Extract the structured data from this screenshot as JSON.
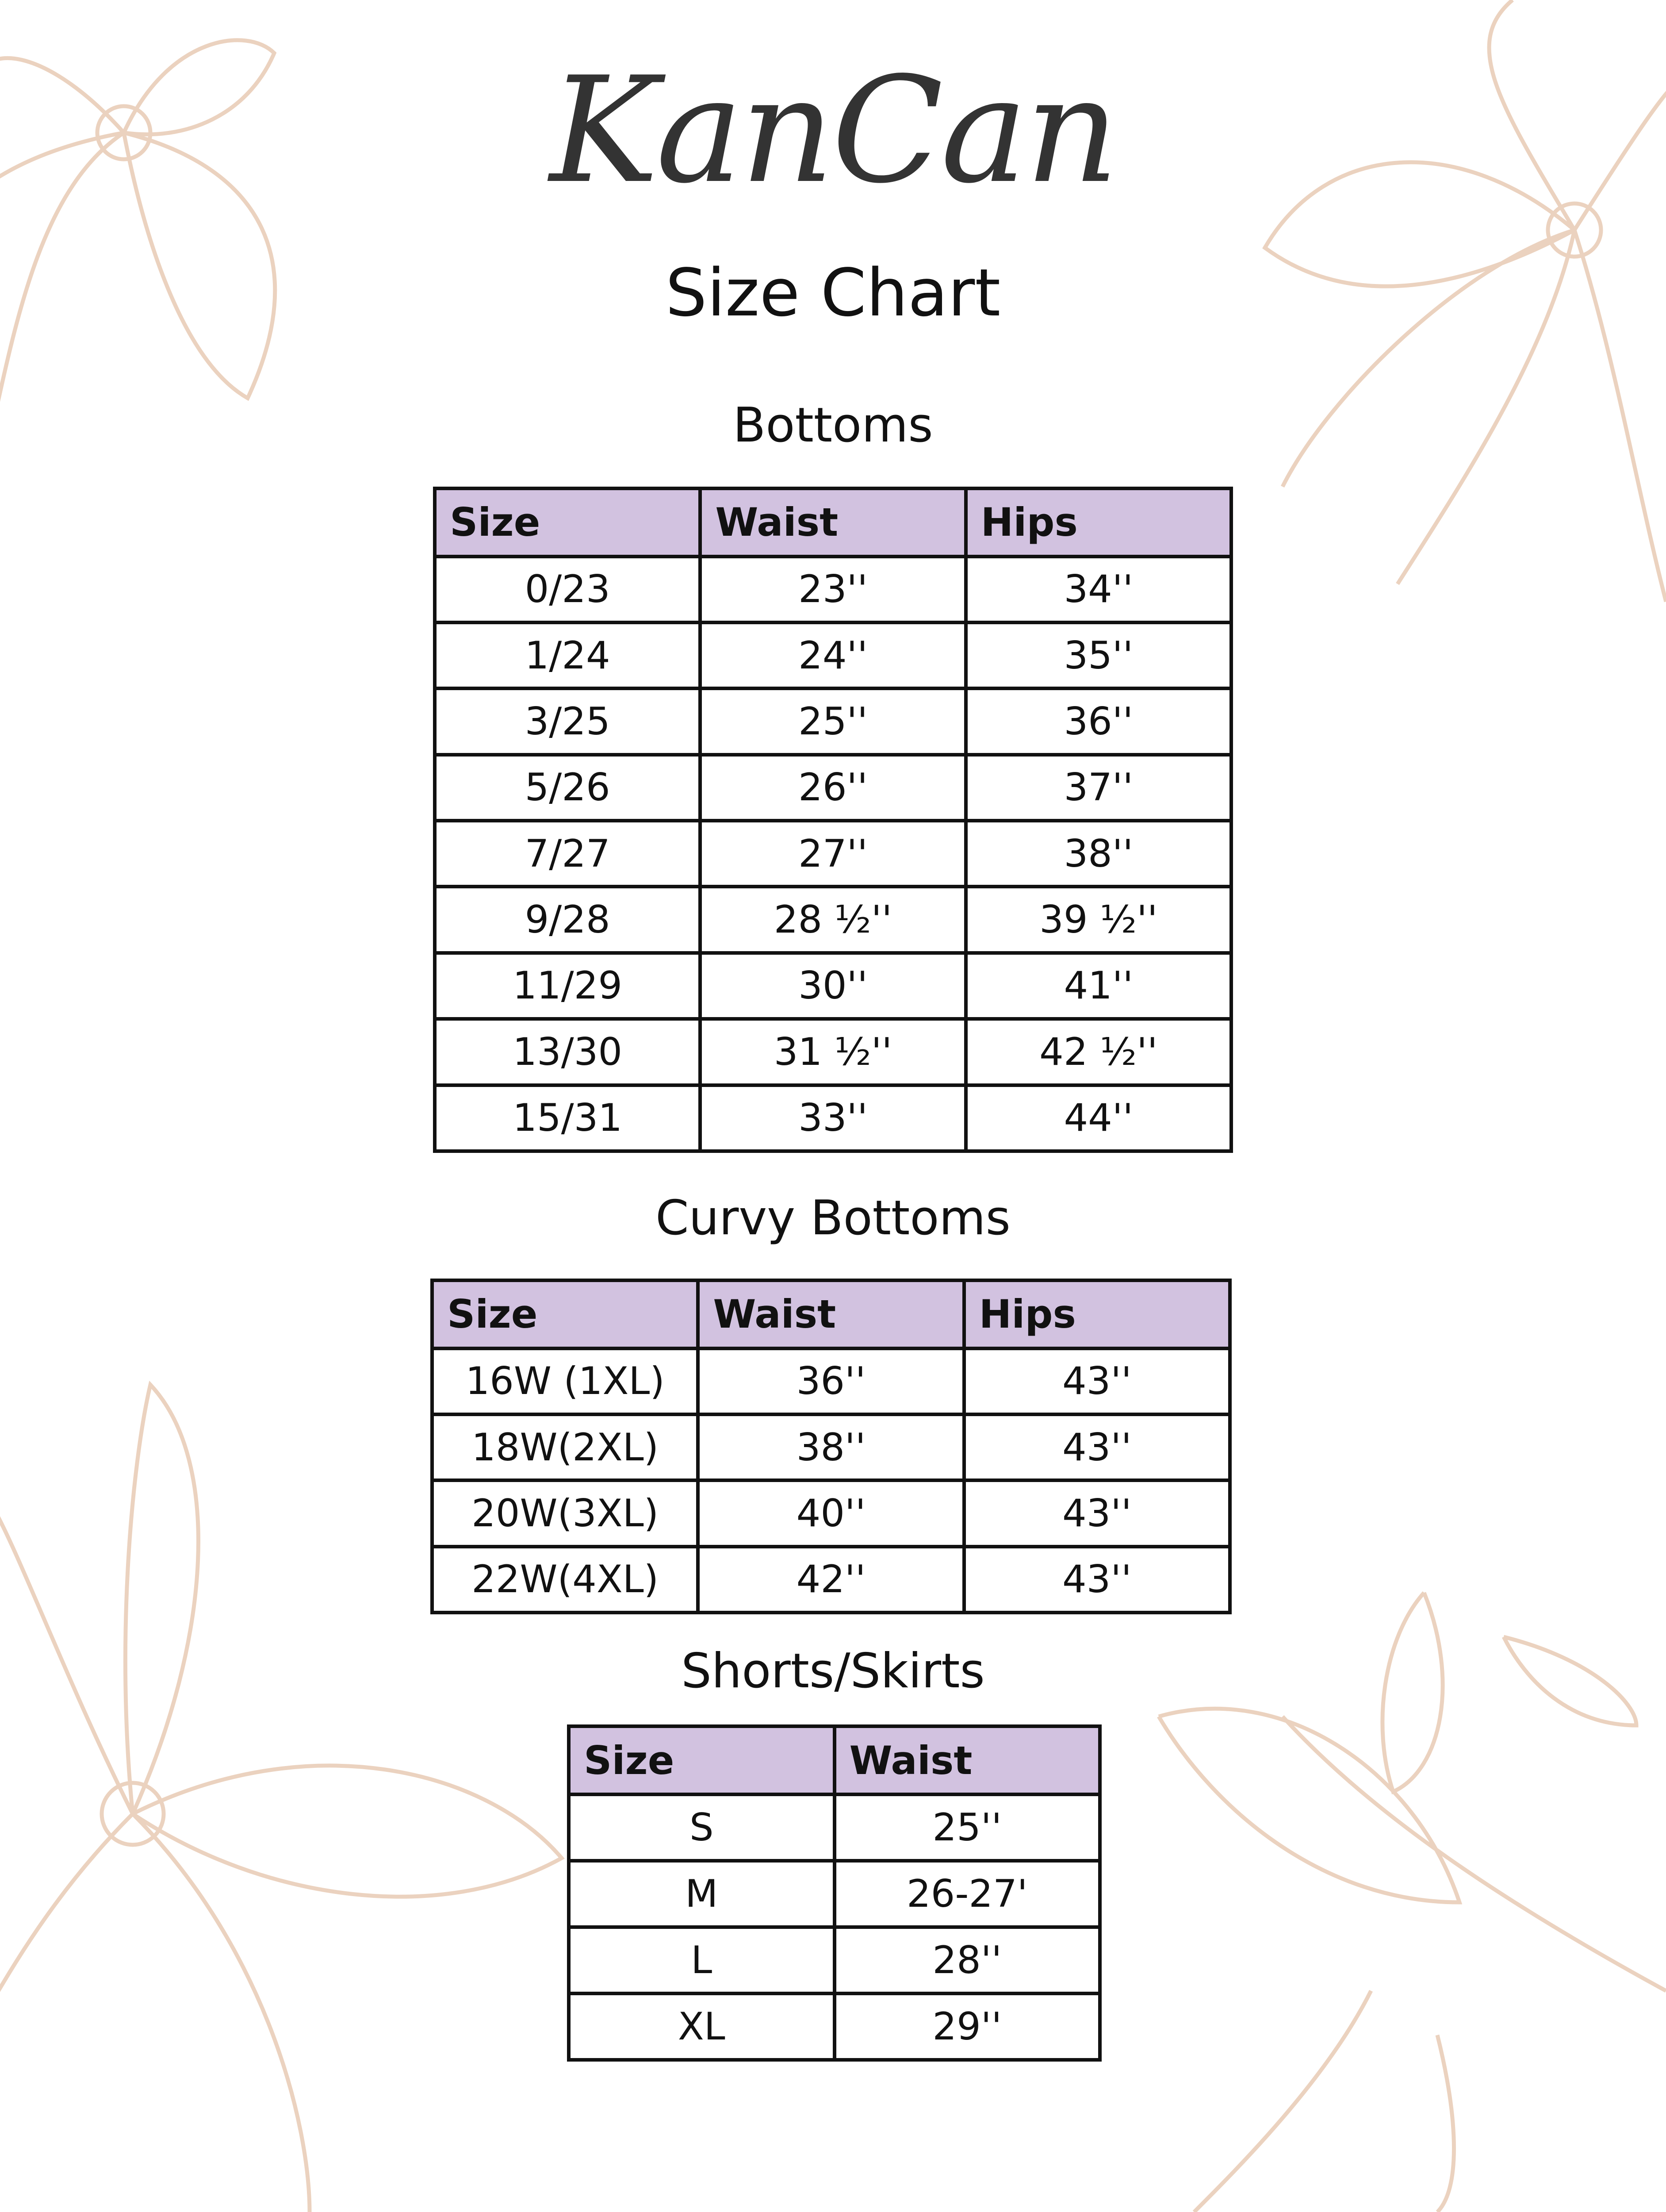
{
  "brand": {
    "logo_text": "KanCan"
  },
  "title": "Size Chart",
  "colors": {
    "header_bg": "#d2c2e0",
    "flower_line": "#ebd2bf",
    "border": "#111111"
  },
  "tables": {
    "bottoms": {
      "title": "Bottoms",
      "headers": [
        "Size",
        "Waist",
        "Hips"
      ],
      "rows": [
        [
          "0/23",
          "23''",
          "34''"
        ],
        [
          "1/24",
          "24''",
          "35''"
        ],
        [
          "3/25",
          "25''",
          "36''"
        ],
        [
          "5/26",
          "26''",
          "37''"
        ],
        [
          "7/27",
          "27''",
          "38''"
        ],
        [
          "9/28",
          "28 ½''",
          "39 ½''"
        ],
        [
          "11/29",
          "30''",
          "41''"
        ],
        [
          "13/30",
          "31 ½''",
          "42 ½''"
        ],
        [
          "15/31",
          "33''",
          "44''"
        ]
      ]
    },
    "curvy": {
      "title": "Curvy Bottoms",
      "headers": [
        "Size",
        "Waist",
        "Hips"
      ],
      "rows": [
        [
          "16W (1XL)",
          "36''",
          "43''"
        ],
        [
          "18W(2XL)",
          "38''",
          "43''"
        ],
        [
          "20W(3XL)",
          "40''",
          "43''"
        ],
        [
          "22W(4XL)",
          "42''",
          "43''"
        ]
      ]
    },
    "shorts": {
      "title": "Shorts/Skirts",
      "headers": [
        "Size",
        "Waist"
      ],
      "rows": [
        [
          "S",
          "25''"
        ],
        [
          "M",
          "26-27'"
        ],
        [
          "L",
          "28''"
        ],
        [
          "XL",
          "29''"
        ]
      ]
    }
  }
}
